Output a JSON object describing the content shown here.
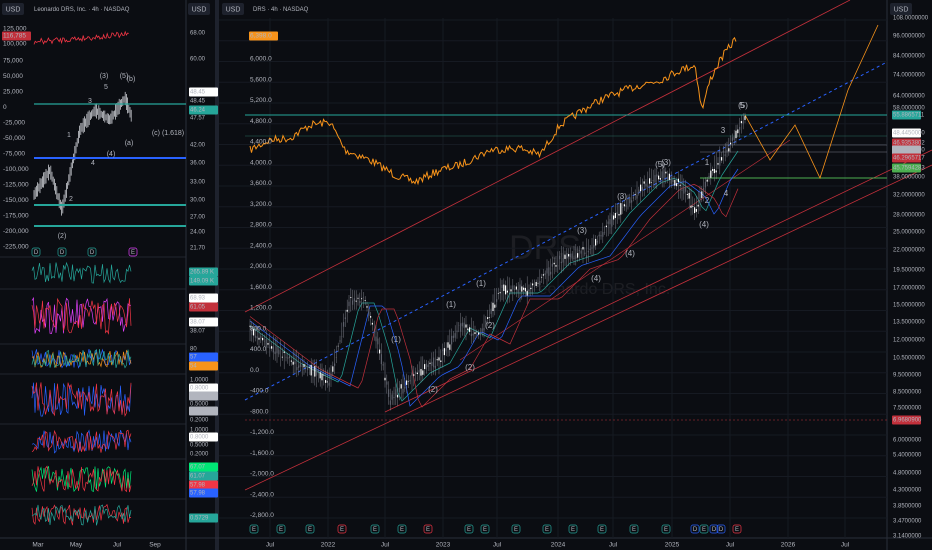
{
  "left_panel": {
    "currency": "USD",
    "axis_currency": "USD",
    "symbol": "Leonardo DRS, Inc. · 4h · NASDAQ",
    "left_axis": [
      "125,000",
      "116,785",
      "100,000",
      "75,000",
      "50,000",
      "25,000",
      "0",
      "-25,000",
      "-50,000",
      "-75,000",
      "-100,000",
      "-125,000",
      "-150,000",
      "-175,000",
      "-200,000",
      "-225,000"
    ],
    "right_axis": [
      "68.00",
      "60.00",
      "48.45",
      "48.45",
      "46.24",
      "47.57",
      "42.00",
      "36.00",
      "33.00",
      "30.00",
      "27.00",
      "24.00",
      "21.70"
    ],
    "wave_labels": [
      "(3)",
      "(5)",
      "(b)",
      "5",
      "3",
      "1",
      "2",
      "(2)",
      "(4)",
      "4",
      "(a)",
      "(c) (1.618)"
    ],
    "pane_labels": [
      "265.89 K",
      "149.09 K",
      "68.93",
      "61.05",
      "38.07",
      "38.07",
      "80",
      "57",
      "54",
      "1.0000",
      "0.8000",
      "0.5996",
      "0.5000",
      "0.4367",
      "0.2000",
      "1.0000",
      "0.8000",
      "0.5000",
      "0.2000",
      "67.07",
      "61.07",
      "57.98",
      "57.98",
      "0.5729"
    ],
    "time_axis": [
      "Mar",
      "May",
      "Jul",
      "Sep"
    ],
    "events": [
      "D",
      "D",
      "D",
      "E"
    ]
  },
  "main_panel": {
    "currency": "USD",
    "axis_currency": "USD",
    "symbol": "DRS · 4h · NASDAQ",
    "watermark": "DRS",
    "watermark_name": "Leonardo DRS, Inc.",
    "left_axis": [
      "6,398.0",
      "6,000.0",
      "5,600.0",
      "5,200.0",
      "4,800.0",
      "4,400.0",
      "4,000.0",
      "3,600.0",
      "3,200.0",
      "2,800.0",
      "2,400.0",
      "2,000.0",
      "1,600.0",
      "1,200.0",
      "800.0",
      "400.0",
      "0.0",
      "-400.0",
      "-800.0",
      "-1,200.0",
      "-1,600.0",
      "-2,000.0",
      "-2,400.0",
      "-2,800.0"
    ],
    "right_axis": [
      "108.0000000",
      "96.0000000",
      "84.0000000",
      "74.0000000",
      "64.0000000",
      "58.0000000",
      "55.8865711",
      "48.4450000",
      "46.9353802",
      "46.4352710",
      "46.2965717",
      "45.7594283",
      "38.0000000",
      "32.0000000",
      "28.0000000",
      "25.0000000",
      "22.0000000",
      "19.5000000",
      "17.0000000",
      "15.0000000",
      "13.5000000",
      "12.0000000",
      "10.5000000",
      "9.5000000",
      "8.5000000",
      "7.5000000",
      "6.9680900",
      "6.0000000",
      "5.4000000",
      "4.8000000",
      "4.3000000",
      "3.8500000",
      "3.4700000",
      "3.1400000"
    ],
    "wave_labels": [
      "(1)",
      "(2)",
      "(3)",
      "(4)",
      "(5)",
      "(1)",
      "(2)",
      "(3)",
      "(4)",
      "(5)",
      "(1)",
      "(2)",
      "(3)",
      "(4)",
      "1",
      "2",
      "3",
      "4",
      "5"
    ],
    "time_axis": [
      "Jul",
      "2022",
      "Jul",
      "2023",
      "Jul",
      "2024",
      "Jul",
      "2025",
      "Jul",
      "2026",
      "Jul"
    ],
    "events": [
      "E",
      "E",
      "E",
      "E",
      "E",
      "E",
      "E",
      "E",
      "E",
      "E",
      "E",
      "E",
      "E",
      "E",
      "E",
      "D",
      "E",
      "D",
      "D",
      "E"
    ]
  }
}
